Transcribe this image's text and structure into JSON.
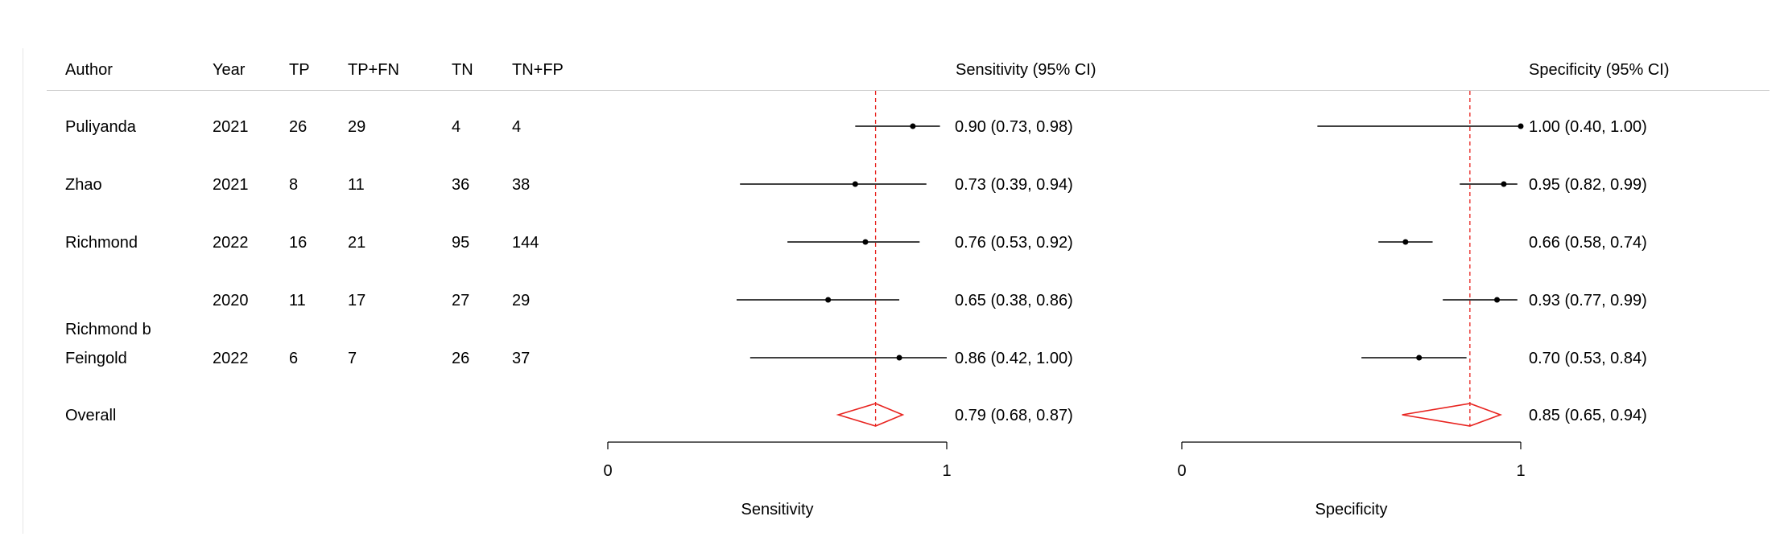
{
  "table": {
    "headers": [
      "Author",
      "Year",
      "TP",
      "TP+FN",
      "TN",
      "TN+FP"
    ],
    "sens_header": "Sensitivity (95% CI)",
    "spec_header": "Specificity (95% CI)",
    "rows": [
      {
        "author": "Puliyanda",
        "year": "2021",
        "tp": "26",
        "tpfn": "29",
        "tn": "4",
        "tnfp": "4",
        "sens_text": "0.90 (0.73, 0.98)",
        "spec_text": "1.00 (0.40, 1.00)"
      },
      {
        "author": "Zhao",
        "year": "2021",
        "tp": "8",
        "tpfn": "11",
        "tn": "36",
        "tnfp": "38",
        "sens_text": "0.73 (0.39, 0.94)",
        "spec_text": "0.95 (0.82, 0.99)"
      },
      {
        "author": "Richmond",
        "year": "2022",
        "tp": "16",
        "tpfn": "21",
        "tn": "95",
        "tnfp": "144",
        "sens_text": "0.76 (0.53, 0.92)",
        "spec_text": "0.66 (0.58, 0.74)"
      },
      {
        "author": "",
        "year": "2020",
        "tp": "11",
        "tpfn": "17",
        "tn": "27",
        "tnfp": "29",
        "sens_text": "0.65 (0.38, 0.86)",
        "spec_text": "0.93 (0.77, 0.99)"
      },
      {
        "author": "Feingold",
        "year": "2022",
        "tp": "6",
        "tpfn": "7",
        "tn": "26",
        "tnfp": "37",
        "sens_text": "0.86 (0.42, 1.00)",
        "spec_text": "0.70 (0.53, 0.84)"
      }
    ],
    "stray_label": "Richmond b",
    "overall": {
      "label": "Overall",
      "sens_text": "0.79 (0.68, 0.87)",
      "spec_text": "0.85 (0.65, 0.94)"
    }
  },
  "colors": {
    "pooled": "#e8231f",
    "study": "#000000",
    "rule": "#cfcfcf"
  },
  "chart_data": [
    {
      "type": "forest",
      "xlabel": "Sensitivity",
      "xlim": [
        0,
        1
      ],
      "xticks": [
        "0",
        "1"
      ],
      "studies": [
        {
          "est": 0.9,
          "lo": 0.73,
          "hi": 0.98
        },
        {
          "est": 0.73,
          "lo": 0.39,
          "hi": 0.94
        },
        {
          "est": 0.76,
          "lo": 0.53,
          "hi": 0.92
        },
        {
          "est": 0.65,
          "lo": 0.38,
          "hi": 0.86
        },
        {
          "est": 0.86,
          "lo": 0.42,
          "hi": 1.0
        }
      ],
      "pooled": {
        "est": 0.79,
        "lo": 0.68,
        "hi": 0.87
      },
      "reference_line": 0.79
    },
    {
      "type": "forest",
      "xlabel": "Specificity",
      "xlim": [
        0,
        1
      ],
      "xticks": [
        "0",
        "1"
      ],
      "studies": [
        {
          "est": 1.0,
          "lo": 0.4,
          "hi": 1.0
        },
        {
          "est": 0.95,
          "lo": 0.82,
          "hi": 0.99
        },
        {
          "est": 0.66,
          "lo": 0.58,
          "hi": 0.74
        },
        {
          "est": 0.93,
          "lo": 0.77,
          "hi": 0.99
        },
        {
          "est": 0.7,
          "lo": 0.53,
          "hi": 0.84
        }
      ],
      "pooled": {
        "est": 0.85,
        "lo": 0.65,
        "hi": 0.94
      },
      "reference_line": 0.85
    }
  ]
}
